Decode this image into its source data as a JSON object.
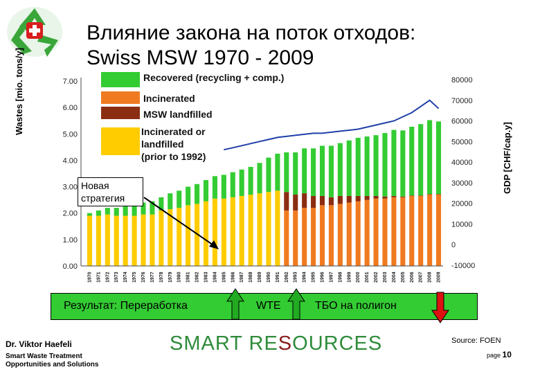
{
  "title_line1": "Влияние закона на поток отходов:",
  "title_line2": "Swiss MSW 1970 - 2009",
  "strategy_note": "Новая стратегия",
  "result_bar": {
    "label1": "Результат: Переработка",
    "label2": "WTE",
    "label3": "ТБО на полигон"
  },
  "footer": {
    "author": "Dr. Viktor Haefeli",
    "subtitle_line1": "Smart Waste Treatment",
    "subtitle_line2": "Opportunities and Solutions",
    "brand_part1": "SMART RE",
    "brand_part2": "S",
    "brand_part3": "OURCES",
    "source": "Source: FOEN",
    "page_prefix": "page",
    "page_number": "10"
  },
  "colors": {
    "recovered": "#33cc33",
    "incinerated": "#f07a20",
    "landfilled": "#8b2d12",
    "combined": "#ffcc00",
    "gdp_line": "#1f3fa8",
    "arrow_up": "#22aa22",
    "arrow_down": "#dd1111"
  },
  "chart_data": {
    "type": "bar",
    "ylabel": "Wastes [mio. tons/y]",
    "y2label": "GDP [CHF/cap.y]",
    "ylim": [
      0,
      7
    ],
    "y2lim": [
      -10000,
      80000
    ],
    "yticks": [
      "0.00",
      "1.00",
      "2.00",
      "3.00",
      "4.00",
      "5.00",
      "6.00",
      "7.00"
    ],
    "y2ticks": [
      "-10000",
      "0",
      "10000",
      "20000",
      "30000",
      "40000",
      "50000",
      "60000",
      "70000",
      "80000"
    ],
    "legend": [
      {
        "name": "Recovered (recycling + comp.)",
        "color": "#33cc33"
      },
      {
        "name": "Incinerated",
        "color": "#f07a20"
      },
      {
        "name": "MSW landfilled",
        "color": "#8b2d12"
      },
      {
        "name": "Incinerated or landfilled (prior to 1992)",
        "color": "#ffcc00"
      }
    ],
    "categories": [
      "1970",
      "1971",
      "1972",
      "1973",
      "1974",
      "1975",
      "1976",
      "1977",
      "1978",
      "1979",
      "1980",
      "1981",
      "1982",
      "1983",
      "1984",
      "1985",
      "1986",
      "1987",
      "1988",
      "1989",
      "1990",
      "1991",
      "1992",
      "1993",
      "1994",
      "1995",
      "1996",
      "1997",
      "1998",
      "1999",
      "2000",
      "2001",
      "2002",
      "2003",
      "2004",
      "2005",
      "2006",
      "2007",
      "2008",
      "2009"
    ],
    "series": [
      {
        "name": "Incinerated or landfilled (prior to 1992)",
        "values": [
          1.9,
          1.9,
          1.95,
          1.9,
          1.9,
          1.9,
          1.95,
          1.95,
          2.1,
          2.15,
          2.2,
          2.3,
          2.35,
          2.45,
          2.55,
          2.55,
          2.6,
          2.65,
          2.7,
          2.75,
          2.8,
          2.85,
          0,
          0,
          0,
          0,
          0,
          0,
          0,
          0,
          0,
          0,
          0,
          0,
          0,
          0,
          0,
          0,
          0,
          0
        ]
      },
      {
        "name": "Incinerated",
        "values": [
          0,
          0,
          0,
          0,
          0,
          0,
          0,
          0,
          0,
          0,
          0,
          0,
          0,
          0,
          0,
          0,
          0,
          0,
          0,
          0,
          0,
          0,
          2.1,
          2.1,
          2.2,
          2.2,
          2.3,
          2.3,
          2.35,
          2.4,
          2.45,
          2.5,
          2.55,
          2.55,
          2.6,
          2.6,
          2.65,
          2.65,
          2.7,
          2.7
        ]
      },
      {
        "name": "MSW landfilled",
        "values": [
          0,
          0,
          0,
          0,
          0,
          0,
          0,
          0,
          0,
          0,
          0,
          0,
          0,
          0,
          0,
          0,
          0,
          0,
          0,
          0,
          0,
          0,
          0.7,
          0.6,
          0.55,
          0.45,
          0.35,
          0.3,
          0.3,
          0.25,
          0.2,
          0.15,
          0.1,
          0.08,
          0.05,
          0.03,
          0.02,
          0.02,
          0.02,
          0.02
        ]
      },
      {
        "name": "Recovered (recycling + comp.)",
        "values": [
          0.1,
          0.2,
          0.25,
          0.3,
          0.4,
          0.45,
          0.45,
          0.5,
          0.5,
          0.6,
          0.65,
          0.7,
          0.75,
          0.8,
          0.85,
          0.9,
          0.95,
          1.0,
          1.05,
          1.15,
          1.3,
          1.4,
          1.5,
          1.6,
          1.7,
          1.8,
          1.9,
          1.95,
          2.0,
          2.1,
          2.2,
          2.25,
          2.3,
          2.4,
          2.5,
          2.5,
          2.6,
          2.7,
          2.8,
          2.75
        ]
      }
    ],
    "gdp": {
      "start_index": 15,
      "values": [
        46000,
        47000,
        48000,
        49000,
        50000,
        51000,
        52000,
        52500,
        53000,
        53500,
        54000,
        54000,
        54500,
        55000,
        55500,
        56000,
        57000,
        58000,
        59000,
        60000,
        62000,
        64000,
        67000,
        70000,
        66000
      ]
    }
  }
}
